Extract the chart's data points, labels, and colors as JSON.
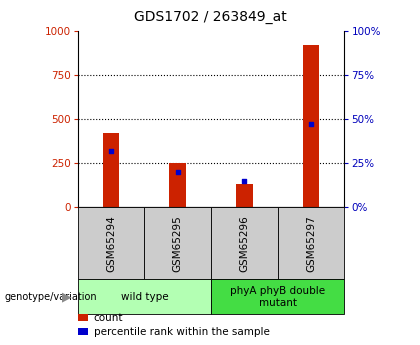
{
  "title": "GDS1702 / 263849_at",
  "samples": [
    "GSM65294",
    "GSM65295",
    "GSM65296",
    "GSM65297"
  ],
  "count_values": [
    420,
    250,
    130,
    920
  ],
  "percentile_values": [
    32,
    20,
    15,
    47
  ],
  "groups": [
    {
      "label": "wild type",
      "indices": [
        0,
        1
      ],
      "color": "#b3ffb3"
    },
    {
      "label": "phyA phyB double\nmutant",
      "indices": [
        2,
        3
      ],
      "color": "#44dd44"
    }
  ],
  "left_ylim": [
    0,
    1000
  ],
  "right_ylim": [
    0,
    100
  ],
  "left_yticks": [
    0,
    250,
    500,
    750,
    1000
  ],
  "right_yticks": [
    0,
    25,
    50,
    75,
    100
  ],
  "bar_color": "#cc2200",
  "blue_color": "#0000cc",
  "left_tick_color": "#cc2200",
  "right_tick_color": "#0000bb",
  "title_fontsize": 10,
  "legend_count_label": "count",
  "legend_pct_label": "percentile rank within the sample",
  "genotype_label": "genotype/variation",
  "sample_box_color": "#cccccc",
  "bar_width": 0.25
}
